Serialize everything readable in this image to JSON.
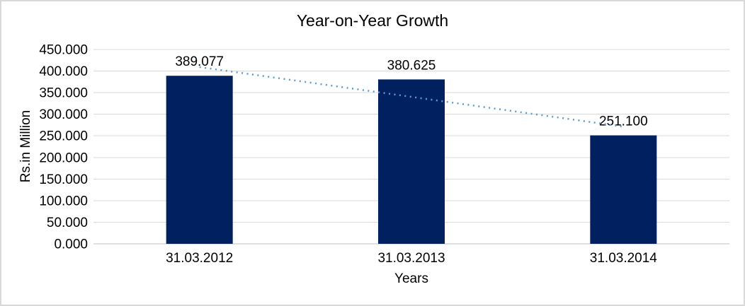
{
  "chart_data": {
    "type": "bar",
    "title": "Year-on-Year Growth",
    "xlabel": "Years",
    "ylabel": "Rs.in Million",
    "categories": [
      "31.03.2012",
      "31.03.2013",
      "31.03.2014"
    ],
    "values": [
      389077,
      380625,
      251100
    ],
    "data_labels": [
      "389.077",
      "380.625",
      "251.100"
    ],
    "ylim": [
      0,
      450000
    ],
    "y_tick_step": 50000,
    "y_tick_labels": [
      "0.000",
      "50.000",
      "100.000",
      "150.000",
      "200.000",
      "250.000",
      "300.000",
      "350.000",
      "400.000",
      "450.000"
    ],
    "grid": true,
    "legend": "none",
    "trendline": {
      "type": "linear",
      "style": "dotted"
    },
    "colors": {
      "bar": "#002060",
      "trendline": "#5B9BD5",
      "gridline": "#D9D9D9",
      "axis_line": "#BFBFBF",
      "text": "#000000",
      "background": "#FFFFFF",
      "frame_border": "#D8D8D8"
    }
  }
}
